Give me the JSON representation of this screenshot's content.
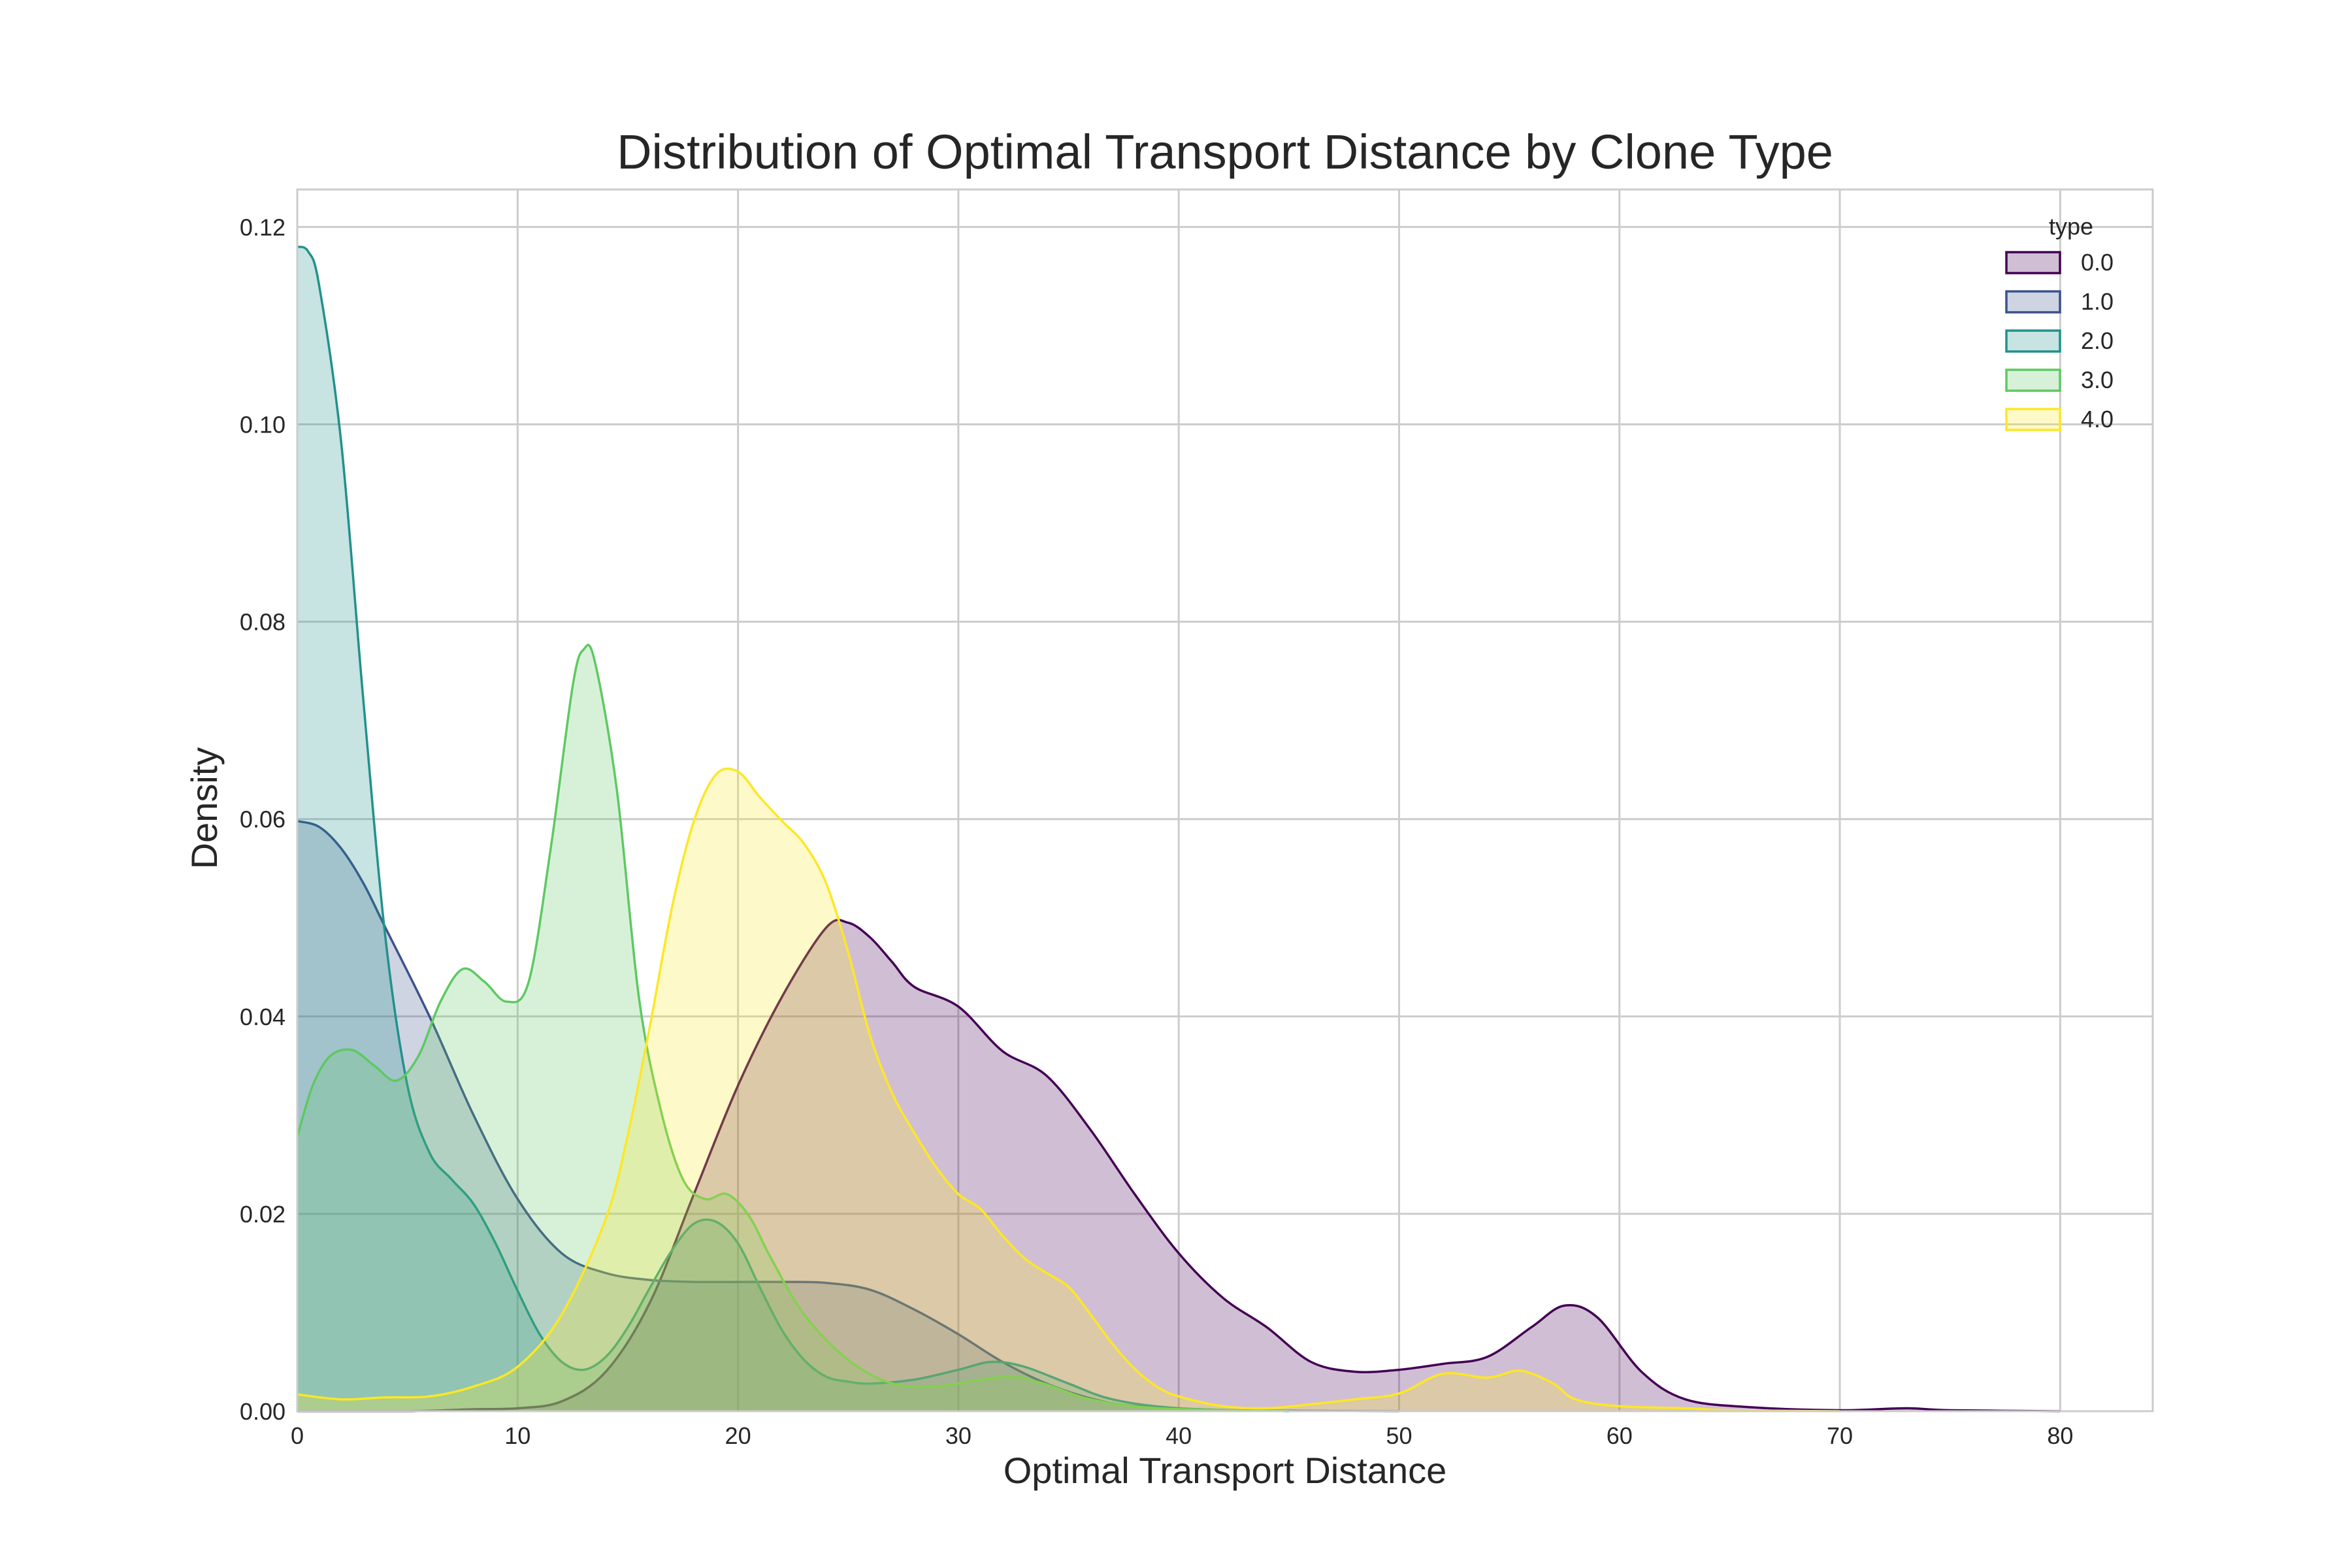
{
  "chart_data": {
    "type": "area",
    "title": "Distribution of Optimal Transport Distance by Clone Type",
    "xlabel": "Optimal Transport Distance",
    "ylabel": "Density",
    "xlim": [
      0,
      84.2
    ],
    "ylim": [
      0,
      0.1238
    ],
    "xticks": [
      0,
      10,
      20,
      30,
      40,
      50,
      60,
      70,
      80
    ],
    "yticks": [
      0.0,
      0.02,
      0.04,
      0.06,
      0.08,
      0.1,
      0.12
    ],
    "ytick_labels": [
      "0.00",
      "0.02",
      "0.04",
      "0.06",
      "0.08",
      "0.10",
      "0.12"
    ],
    "grid": true,
    "legend": {
      "title": "type",
      "position": "top-right"
    },
    "series": [
      {
        "name": "0.0",
        "color": "#440154",
        "points": [
          [
            0,
            0
          ],
          [
            5,
            0
          ],
          [
            8,
            0.0002
          ],
          [
            10,
            0.0003
          ],
          [
            12,
            0.001
          ],
          [
            14,
            0.004
          ],
          [
            16,
            0.011
          ],
          [
            18,
            0.022
          ],
          [
            20,
            0.033
          ],
          [
            22,
            0.042
          ],
          [
            24,
            0.049
          ],
          [
            25,
            0.0495
          ],
          [
            26,
            0.048
          ],
          [
            27,
            0.0455
          ],
          [
            28,
            0.043
          ],
          [
            30,
            0.041
          ],
          [
            32,
            0.0365
          ],
          [
            34,
            0.034
          ],
          [
            36,
            0.0285
          ],
          [
            38,
            0.022
          ],
          [
            40,
            0.016
          ],
          [
            42,
            0.0115
          ],
          [
            44,
            0.0085
          ],
          [
            46,
            0.005
          ],
          [
            48,
            0.004
          ],
          [
            50,
            0.0042
          ],
          [
            52,
            0.0048
          ],
          [
            54,
            0.0055
          ],
          [
            56,
            0.0085
          ],
          [
            57.5,
            0.0107
          ],
          [
            59,
            0.0095
          ],
          [
            61,
            0.004
          ],
          [
            63,
            0.0012
          ],
          [
            66,
            0.0004
          ],
          [
            70,
            0.0001
          ],
          [
            73,
            0.0003
          ],
          [
            75,
            0.0001
          ],
          [
            80,
            0
          ]
        ]
      },
      {
        "name": "1.0",
        "color": "#3b528b",
        "points": [
          [
            0,
            0.0598
          ],
          [
            1,
            0.0592
          ],
          [
            2,
            0.057
          ],
          [
            3,
            0.0535
          ],
          [
            4,
            0.049
          ],
          [
            6,
            0.04
          ],
          [
            8,
            0.03
          ],
          [
            10,
            0.0215
          ],
          [
            12,
            0.016
          ],
          [
            14,
            0.014
          ],
          [
            16,
            0.0133
          ],
          [
            18,
            0.0131
          ],
          [
            20,
            0.0131
          ],
          [
            22,
            0.0131
          ],
          [
            24,
            0.013
          ],
          [
            26,
            0.0123
          ],
          [
            28,
            0.0103
          ],
          [
            30,
            0.0078
          ],
          [
            32,
            0.005
          ],
          [
            34,
            0.0028
          ],
          [
            36,
            0.0013
          ],
          [
            38,
            0.0005
          ],
          [
            42,
            0.0001
          ],
          [
            50,
            0
          ]
        ]
      },
      {
        "name": "2.0",
        "color": "#21918c",
        "points": [
          [
            0,
            0.118
          ],
          [
            0.5,
            0.1175
          ],
          [
            1,
            0.114
          ],
          [
            2,
            0.098
          ],
          [
            3,
            0.072
          ],
          [
            4,
            0.048
          ],
          [
            5,
            0.033
          ],
          [
            6,
            0.0262
          ],
          [
            7,
            0.0235
          ],
          [
            8,
            0.021
          ],
          [
            9,
            0.017
          ],
          [
            10,
            0.0122
          ],
          [
            11,
            0.0078
          ],
          [
            12,
            0.005
          ],
          [
            13,
            0.0042
          ],
          [
            14,
            0.0055
          ],
          [
            15,
            0.0085
          ],
          [
            16,
            0.0125
          ],
          [
            17,
            0.0163
          ],
          [
            18,
            0.019
          ],
          [
            19,
            0.0192
          ],
          [
            20,
            0.017
          ],
          [
            21,
            0.0125
          ],
          [
            22,
            0.0082
          ],
          [
            23,
            0.0052
          ],
          [
            24,
            0.0035
          ],
          [
            25,
            0.003
          ],
          [
            26,
            0.0028
          ],
          [
            28,
            0.0032
          ],
          [
            30,
            0.0042
          ],
          [
            31.5,
            0.005
          ],
          [
            33,
            0.0045
          ],
          [
            35,
            0.0028
          ],
          [
            37,
            0.0012
          ],
          [
            40,
            0.0003
          ],
          [
            45,
            0
          ]
        ]
      },
      {
        "name": "3.0",
        "color": "#5ec962",
        "points": [
          [
            0,
            0.0278
          ],
          [
            0.7,
            0.033
          ],
          [
            1.5,
            0.036
          ],
          [
            2.5,
            0.0366
          ],
          [
            3.5,
            0.035
          ],
          [
            4.5,
            0.0335
          ],
          [
            5.5,
            0.036
          ],
          [
            6.5,
            0.0415
          ],
          [
            7.5,
            0.0448
          ],
          [
            8.5,
            0.0435
          ],
          [
            9.5,
            0.0415
          ],
          [
            10.5,
            0.0435
          ],
          [
            11.5,
            0.057
          ],
          [
            12.5,
            0.0735
          ],
          [
            13,
            0.0772
          ],
          [
            13.5,
            0.076
          ],
          [
            14.5,
            0.063
          ],
          [
            15.5,
            0.042
          ],
          [
            16.5,
            0.0305
          ],
          [
            17.5,
            0.0235
          ],
          [
            18.5,
            0.0215
          ],
          [
            19.5,
            0.022
          ],
          [
            20.5,
            0.0198
          ],
          [
            21.5,
            0.0155
          ],
          [
            23,
            0.0098
          ],
          [
            25,
            0.0052
          ],
          [
            27,
            0.0028
          ],
          [
            29,
            0.0025
          ],
          [
            31,
            0.0032
          ],
          [
            32.5,
            0.0035
          ],
          [
            34,
            0.0027
          ],
          [
            36,
            0.0012
          ],
          [
            39,
            0.0003
          ],
          [
            45,
            0
          ]
        ]
      },
      {
        "name": "4.0",
        "color": "#fde725",
        "points": [
          [
            0,
            0.0017
          ],
          [
            2,
            0.0012
          ],
          [
            4,
            0.0014
          ],
          [
            6,
            0.0015
          ],
          [
            8,
            0.0025
          ],
          [
            10,
            0.0045
          ],
          [
            12,
            0.0098
          ],
          [
            14,
            0.0195
          ],
          [
            15,
            0.028
          ],
          [
            16,
            0.039
          ],
          [
            17,
            0.051
          ],
          [
            18,
            0.0598
          ],
          [
            19,
            0.0645
          ],
          [
            20,
            0.0648
          ],
          [
            21,
            0.0622
          ],
          [
            22,
            0.0598
          ],
          [
            23,
            0.0575
          ],
          [
            24,
            0.0535
          ],
          [
            25,
            0.0465
          ],
          [
            26,
            0.038
          ],
          [
            27,
            0.0322
          ],
          [
            28,
            0.0282
          ],
          [
            29,
            0.0247
          ],
          [
            30,
            0.022
          ],
          [
            31,
            0.0205
          ],
          [
            32,
            0.0178
          ],
          [
            33,
            0.0155
          ],
          [
            34,
            0.014
          ],
          [
            35,
            0.0126
          ],
          [
            36,
            0.0098
          ],
          [
            37,
            0.0068
          ],
          [
            38,
            0.0043
          ],
          [
            39,
            0.0025
          ],
          [
            40,
            0.0015
          ],
          [
            42,
            0.0005
          ],
          [
            44,
            0.0003
          ],
          [
            46,
            0.0007
          ],
          [
            48,
            0.0012
          ],
          [
            50,
            0.0018
          ],
          [
            52,
            0.0038
          ],
          [
            54,
            0.0034
          ],
          [
            55.5,
            0.0041
          ],
          [
            57,
            0.0028
          ],
          [
            58,
            0.0012
          ],
          [
            60,
            0.0005
          ],
          [
            63,
            0.0003
          ],
          [
            65,
            0.0001
          ],
          [
            70,
            0
          ]
        ]
      }
    ]
  }
}
